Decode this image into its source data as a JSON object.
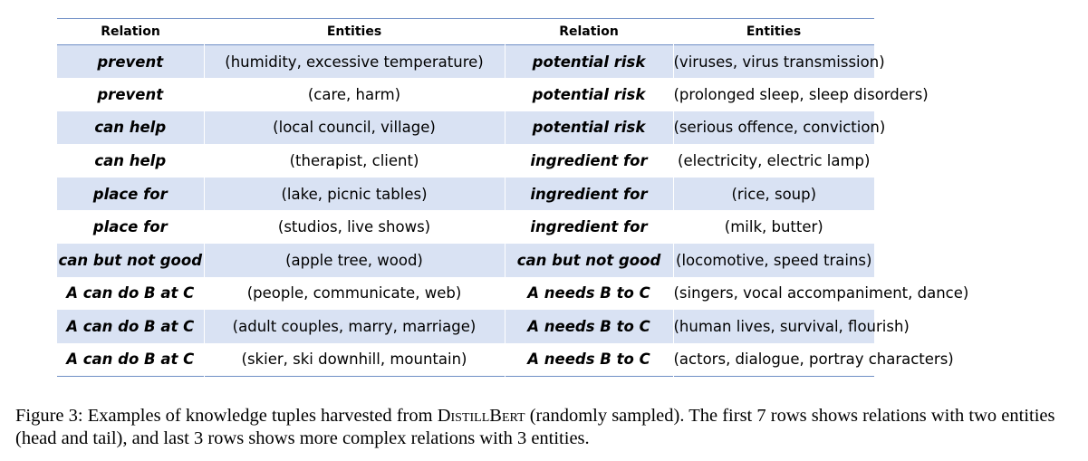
{
  "table": {
    "headers": [
      "Relation",
      "Entities",
      "Relation",
      "Entities"
    ],
    "rows": [
      {
        "rel1": "prevent",
        "ent1": "(humidity, excessive temperature)",
        "rel2": "potential risk",
        "ent2": "(viruses, virus transmission)"
      },
      {
        "rel1": "prevent",
        "ent1": "(care, harm)",
        "rel2": "potential risk",
        "ent2": "(prolonged sleep, sleep disorders)"
      },
      {
        "rel1": "can help",
        "ent1": "(local council, village)",
        "rel2": "potential risk",
        "ent2": "(serious offence, conviction)"
      },
      {
        "rel1": "can help",
        "ent1": "(therapist, client)",
        "rel2": "ingredient for",
        "ent2": "(electricity, electric lamp)"
      },
      {
        "rel1": "place for",
        "ent1": "(lake, picnic tables)",
        "rel2": "ingredient for",
        "ent2": "(rice, soup)"
      },
      {
        "rel1": "place for",
        "ent1": "(studios, live shows)",
        "rel2": "ingredient for",
        "ent2": "(milk, butter)"
      },
      {
        "rel1": "can but not good",
        "ent1": "(apple tree, wood)",
        "rel2": "can but not good",
        "ent2": "(locomotive, speed trains)"
      },
      {
        "rel1": "A can do B at C",
        "ent1": "(people, communicate, web)",
        "rel2": "A needs B to C",
        "ent2": "(singers, vocal accompaniment, dance)"
      },
      {
        "rel1": "A can do B at C",
        "ent1": "(adult couples, marry, marriage)",
        "rel2": "A needs B to C",
        "ent2": "(human lives, survival, flourish)"
      },
      {
        "rel1": "A can do B at C",
        "ent1": "(skier, ski downhill, mountain)",
        "rel2": "A needs B to C",
        "ent2": "(actors, dialogue, portray characters)"
      }
    ]
  },
  "caption": {
    "prefix": "Figure 3: Examples of knowledge tuples harvested from ",
    "model": "DistillBert",
    "suffix": " (randomly sampled). The first 7 rows shows relations with two entities (head and tail), and last 3 rows shows more complex relations with 3 entities."
  }
}
